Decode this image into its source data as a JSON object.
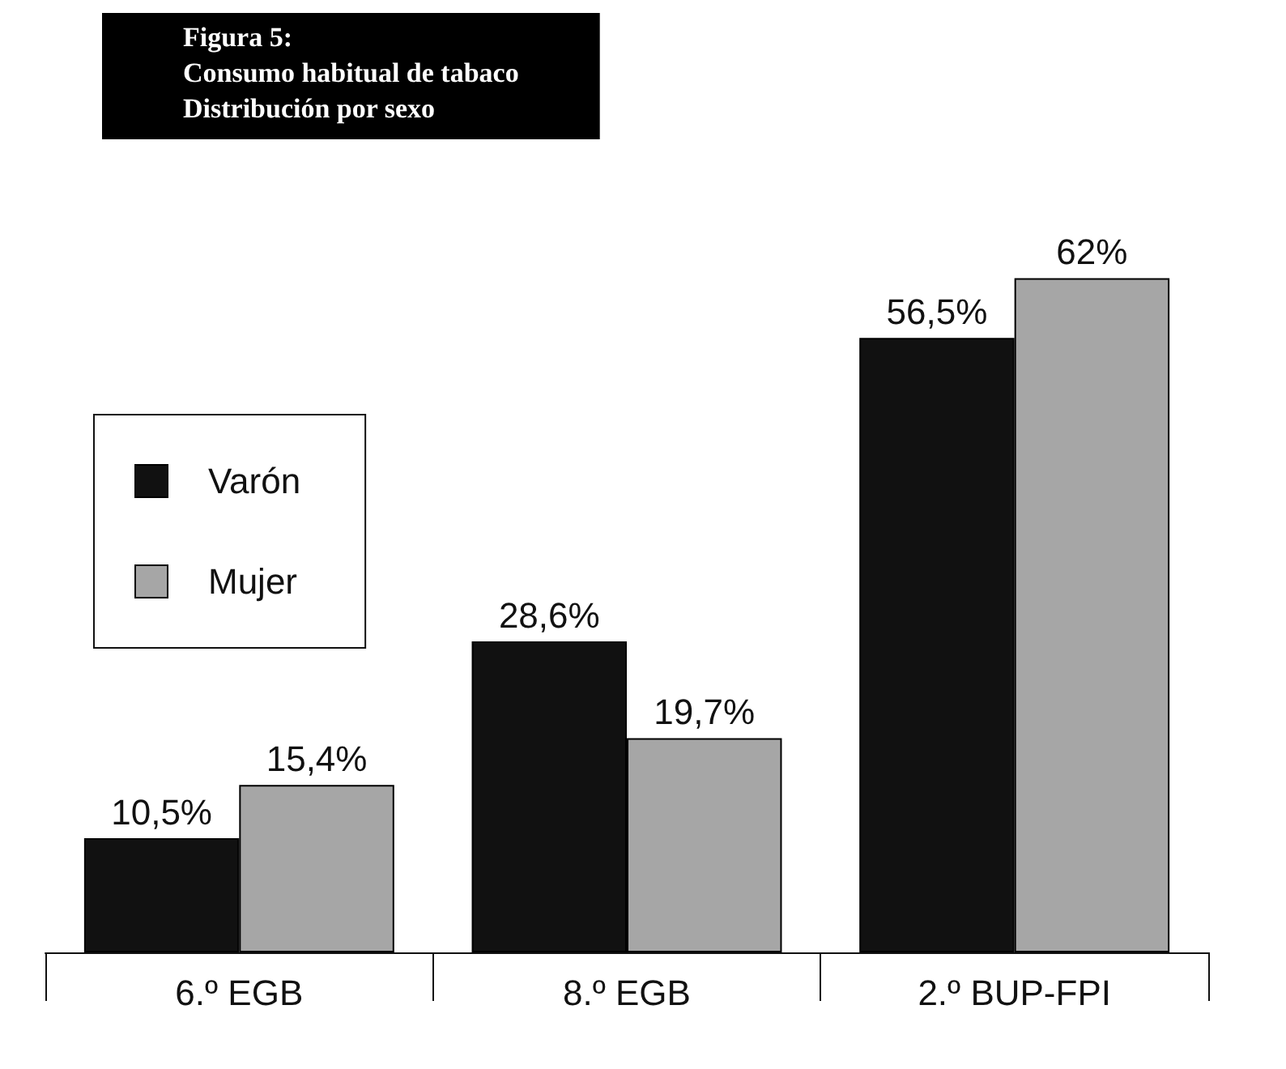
{
  "chart_data": {
    "type": "bar",
    "title": "Figura 5:\nConsumo habitual de tabaco\nDistribución por sexo",
    "categories": [
      "6.º EGB",
      "8.º EGB",
      "2.º BUP-FPI"
    ],
    "series": [
      {
        "name": "Varón",
        "color": "#111111",
        "values": [
          10.5,
          28.6,
          56.5
        ],
        "value_labels": [
          "10,5%",
          "28,6%",
          "56,5%"
        ]
      },
      {
        "name": "Mujer",
        "color": "#a6a6a6",
        "values": [
          15.4,
          19.7,
          62
        ],
        "value_labels": [
          "15,4%",
          "19,7%",
          "62%"
        ]
      }
    ],
    "legend": "left"
  }
}
